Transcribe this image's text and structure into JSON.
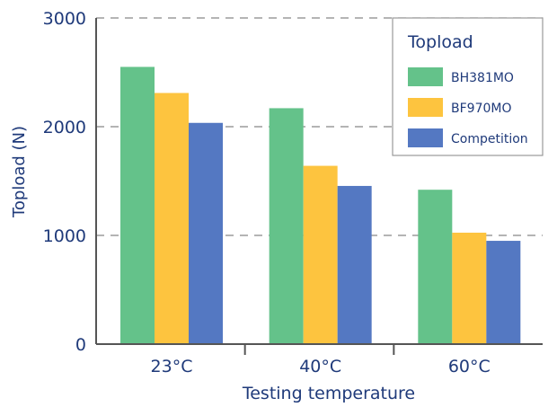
{
  "chart_data": {
    "type": "bar",
    "title": "",
    "xlabel": "Testing temperature",
    "ylabel": "Topload (N)",
    "categories": [
      "23°C",
      "40°C",
      "60°C"
    ],
    "ylim": [
      0,
      3000
    ],
    "yticks": [
      "0",
      "1000",
      "2000",
      "3000"
    ],
    "grid": "dashed horizontal at 1000, 2000, 3000",
    "legend": {
      "title": "Topload",
      "position": "top-right"
    },
    "series": [
      {
        "name": "BH381MO",
        "color": "#64c28a",
        "values": [
          2550,
          2170,
          1420
        ]
      },
      {
        "name": "BF970MO",
        "color": "#fdc43f",
        "values": [
          2310,
          1640,
          1025
        ]
      },
      {
        "name": "Competition",
        "color": "#5478c2",
        "values": [
          2035,
          1455,
          950
        ]
      }
    ]
  }
}
